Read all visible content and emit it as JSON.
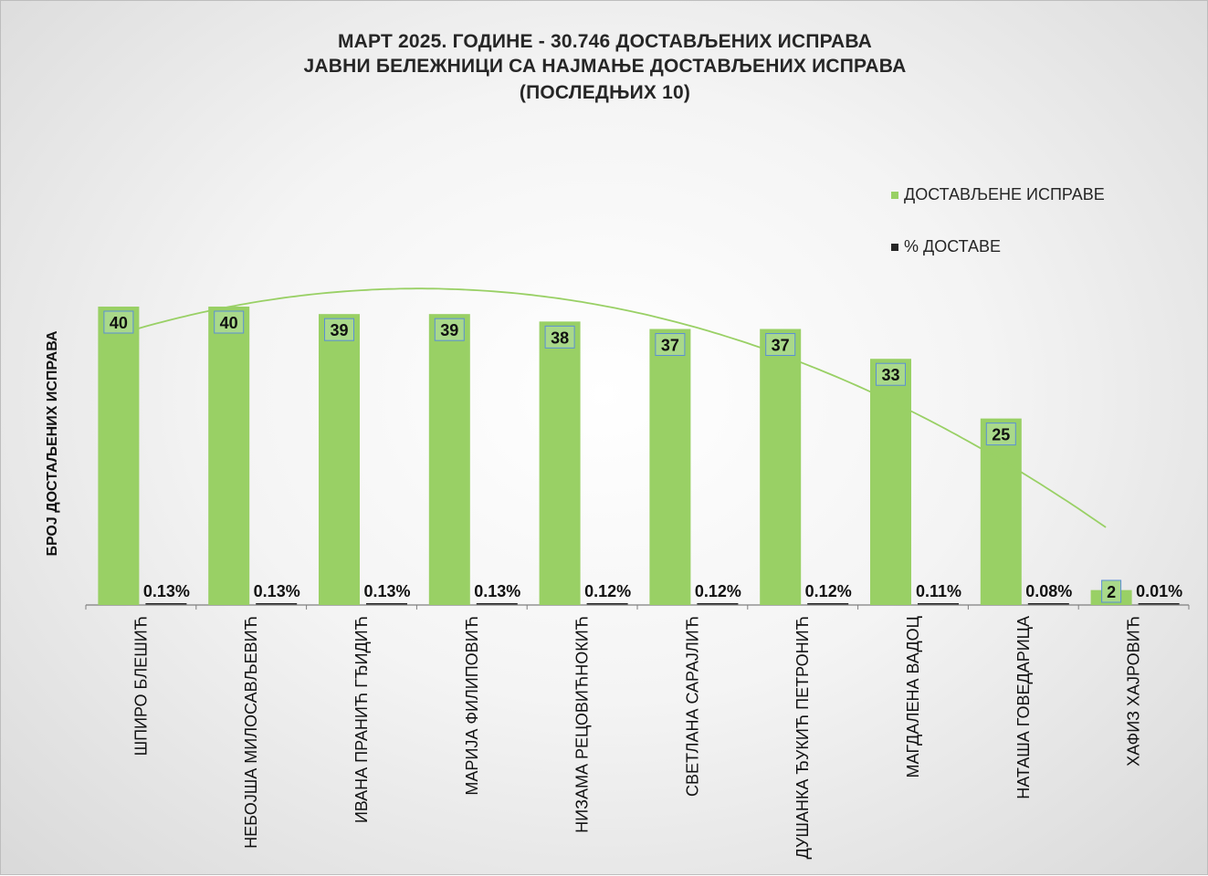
{
  "chart_data": {
    "type": "bar",
    "title_lines": [
      "МАРТ 2025. ГОДИНЕ - 30.746 ДОСТАВЉЕНИХ ИСПРАВА",
      "ЈАВНИ БЕЛЕЖНИЦИ СА НАЈМАЊЕ ДОСТАВЉЕНИХ ИСПРАВА",
      "(ПОСЛЕДЊИХ 10)"
    ],
    "ylabel": "БРОЈ ДОСТАЉЕНИХ ИСПРАВА",
    "xlabel": "",
    "categories": [
      "ШПИРО БЛЕШИЋ",
      "НЕБОЈША МИЛОСАВЉЕВИЋ",
      "ИВАНА ПРАНИЋ ГЂИДИЋ",
      "МАРИЈА ФИЛИПОВИЋ",
      "НИЗАМА РЕЦОВИЋНОКИЋ",
      "СВЕТЛАНА САРАЈЛИЋ",
      "ДУШАНКА ЂУКИЋ ПЕТРОНИЋ",
      "МАГДАЛЕНА ВАДОЦ",
      "НАТАША ГОВЕДАРИЦА",
      "ХАФИЗ ХАЈРОВИЋ"
    ],
    "series": [
      {
        "name": "ДОСТАВЉЕНЕ ИСПРАВЕ",
        "color": "#99d065",
        "values": [
          40,
          40,
          39,
          39,
          38,
          37,
          37,
          33,
          25,
          2
        ],
        "labels": [
          "40",
          "40",
          "39",
          "39",
          "38",
          "37",
          "37",
          "33",
          "25",
          "2"
        ]
      },
      {
        "name": "% ДОСТАВЕ",
        "color": "#262626",
        "values": [
          0.13,
          0.13,
          0.13,
          0.13,
          0.12,
          0.12,
          0.12,
          0.11,
          0.08,
          0.01
        ],
        "labels": [
          "0.13%",
          "0.13%",
          "0.13%",
          "0.13%",
          "0.12%",
          "0.12%",
          "0.12%",
          "0.11%",
          "0.08%",
          "0.01%"
        ]
      }
    ],
    "trendline": {
      "type": "polynomial",
      "series": "ДОСТАВЉЕНЕ ИСПРАВЕ",
      "color": "#99d065"
    },
    "ylim": [
      0,
      40
    ],
    "grid": false,
    "legend_position": "right"
  }
}
